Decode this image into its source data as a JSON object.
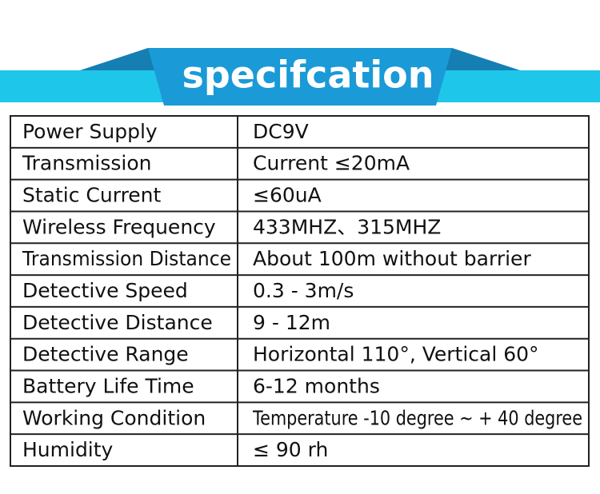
{
  "header": {
    "title": "specifcation"
  },
  "table": {
    "rows": [
      [
        "Power Supply",
        "DC9V"
      ],
      [
        "Transmission",
        "Current ≤20mA"
      ],
      [
        "Static Current",
        "≤60uA"
      ],
      [
        "Wireless Frequency",
        "433MHZ、315MHZ"
      ],
      [
        "Transmission Distance",
        "About 100m without barrier"
      ],
      [
        "Detective Speed",
        "0.3 - 3m/s"
      ],
      [
        "Detective Distance",
        "9 - 12m"
      ],
      [
        "Detective Range",
        "Horizontal 110°, Vertical 60°"
      ],
      [
        "Battery Life Time",
        "6-12 months"
      ],
      [
        "Working Condition",
        "Temperature -10 degree ~ + 40 degree"
      ],
      [
        "Humidity",
        "≤ 90 rh"
      ]
    ]
  }
}
